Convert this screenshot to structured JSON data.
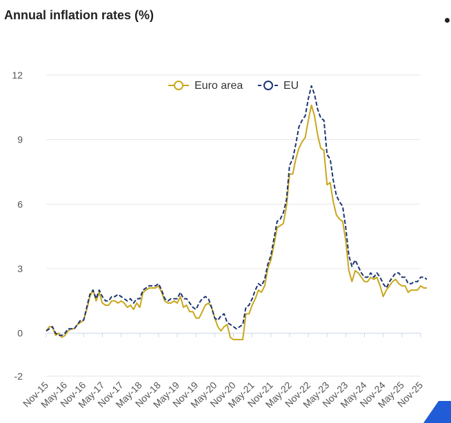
{
  "title": "Annual inflation rates (%)",
  "colors": {
    "euro_area": "#c9a61a",
    "eu": "#1c3572",
    "grid": "#e6e6e6",
    "axis": "#ccd6eb",
    "corner_mark": "#1f5cd6"
  },
  "chart_data": {
    "type": "line",
    "title": "Annual inflation rates (%)",
    "xlabel": "",
    "ylabel": "",
    "ylim": [
      -2,
      12
    ],
    "yticks": [
      -2,
      0,
      3,
      6,
      9,
      12
    ],
    "grid": true,
    "legend_position": "top-center",
    "x_tick_labels": [
      "Nov-15",
      "May-16",
      "Nov-16",
      "May-17",
      "Nov-17",
      "May-18",
      "Nov-18",
      "May-19",
      "Nov-19",
      "May-20",
      "Nov-20",
      "May-21",
      "Nov-21",
      "May-22",
      "Nov-22",
      "May-23",
      "Nov-23",
      "May-24",
      "Nov-24",
      "May-25",
      "Nov-25"
    ],
    "x_tick_months": [
      0,
      6,
      12,
      18,
      24,
      30,
      36,
      42,
      48,
      54,
      60,
      66,
      72,
      78,
      84,
      90,
      96,
      102,
      108,
      114,
      120
    ],
    "x_range_months": [
      0,
      120
    ],
    "series": [
      {
        "name": "Euro area",
        "style": "solid",
        "values": [
          0.1,
          0.3,
          0.3,
          -0.1,
          0,
          -0.2,
          -0.1,
          0.1,
          0.2,
          0.2,
          0.4,
          0.5,
          0.6,
          1.1,
          1.7,
          2,
          1.5,
          1.9,
          1.4,
          1.3,
          1.3,
          1.5,
          1.5,
          1.4,
          1.5,
          1.4,
          1.2,
          1.3,
          1.1,
          1.4,
          1.2,
          1.9,
          2,
          2.1,
          2.1,
          2.1,
          2.2,
          1.9,
          1.5,
          1.4,
          1.4,
          1.5,
          1.4,
          1.7,
          1.2,
          1.3,
          1,
          1,
          0.7,
          0.7,
          1,
          1.3,
          1.4,
          1.2,
          0.7,
          0.3,
          0.1,
          0.3,
          0.4,
          -0.2,
          -0.3,
          -0.3,
          -0.3,
          -0.3,
          0.9,
          0.9,
          1.3,
          1.6,
          2,
          1.9,
          2.2,
          3,
          3.4,
          4.1,
          4.9,
          5,
          5.1,
          5.9,
          7.4,
          7.4,
          8.1,
          8.6,
          8.9,
          9.1,
          9.9,
          10.6,
          10.1,
          9.2,
          8.6,
          8.5,
          6.9,
          7,
          6.1,
          5.5,
          5.3,
          5.2,
          4.3,
          2.9,
          2.4,
          2.9,
          2.8,
          2.6,
          2.4,
          2.4,
          2.6,
          2.5,
          2.6,
          2.2,
          1.7,
          2,
          2.2,
          2.4,
          2.5,
          2.3,
          2.2,
          2.2,
          1.9,
          2,
          2,
          2,
          2.2,
          2.1,
          2.1
        ],
        "start_month": 0
      },
      {
        "name": "EU",
        "style": "dashed",
        "values": [
          0.1,
          0.2,
          0.3,
          0,
          -0.1,
          -0.1,
          0,
          0.2,
          0.2,
          0.2,
          0.4,
          0.6,
          0.6,
          1.2,
          1.8,
          2,
          1.6,
          2,
          1.7,
          1.5,
          1.5,
          1.7,
          1.7,
          1.8,
          1.7,
          1.6,
          1.5,
          1.6,
          1.4,
          1.6,
          1.6,
          2,
          2.1,
          2.2,
          2.2,
          2.2,
          2.3,
          2,
          1.6,
          1.5,
          1.6,
          1.6,
          1.6,
          1.9,
          1.6,
          1.6,
          1.4,
          1.2,
          1.1,
          1.4,
          1.6,
          1.7,
          1.6,
          1.2,
          0.7,
          0.6,
          0.8,
          0.9,
          0.5,
          0.4,
          0.3,
          0.2,
          0.3,
          0.4,
          1.2,
          1.3,
          1.6,
          2,
          2.3,
          2.2,
          2.5,
          3.2,
          3.6,
          4.4,
          5.2,
          5.3,
          5.6,
          6.2,
          7.8,
          8.1,
          8.8,
          9.6,
          9.9,
          10.1,
          10.9,
          11.5,
          11.1,
          10.4,
          10,
          9.9,
          8.3,
          8.1,
          7.1,
          6.4,
          6.1,
          5.9,
          4.9,
          3.6,
          3.1,
          3.4,
          3.1,
          2.8,
          2.6,
          2.6,
          2.8,
          2.6,
          2.8,
          2.6,
          2.3,
          2.1,
          2.4,
          2.6,
          2.8,
          2.8,
          2.6,
          2.6,
          2.3,
          2.3,
          2.4,
          2.4,
          2.6,
          2.6,
          2.5
        ],
        "start_month": 0
      }
    ]
  }
}
